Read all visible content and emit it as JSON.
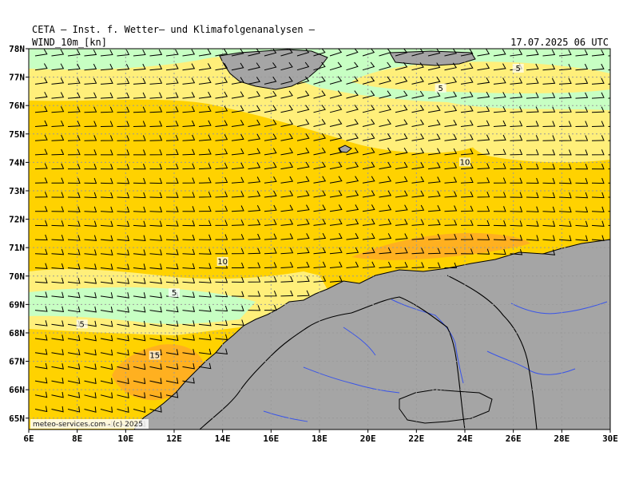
{
  "header": {
    "title": "CETA – Inst. f. Wetter– und Klimafolgenanalysen –",
    "field": "WIND_10m_[kn]",
    "valid_time": "17.07.2025 06 UTC"
  },
  "map": {
    "lon_range": [
      6,
      30
    ],
    "lat_range": [
      64.6,
      78
    ],
    "lat_ticks": [
      "65N",
      "66N",
      "67N",
      "68N",
      "69N",
      "70N",
      "71N",
      "72N",
      "73N",
      "74N",
      "75N",
      "76N",
      "77N",
      "78N"
    ],
    "lon_ticks": [
      "6E",
      "8E",
      "10E",
      "12E",
      "14E",
      "16E",
      "18E",
      "20E",
      "22E",
      "24E",
      "26E",
      "28E",
      "30E"
    ],
    "contour_labels": [
      {
        "text": "5",
        "lon": 26.2,
        "lat": 77.3
      },
      {
        "text": "5",
        "lon": 23.0,
        "lat": 76.6
      },
      {
        "text": "10",
        "lon": 24.0,
        "lat": 74.0
      },
      {
        "text": "10",
        "lon": 14.0,
        "lat": 70.5
      },
      {
        "text": "5",
        "lon": 12.0,
        "lat": 69.4
      },
      {
        "text": "5",
        "lon": 8.2,
        "lat": 68.3
      },
      {
        "text": "15",
        "lon": 11.2,
        "lat": 67.2
      }
    ],
    "credit": "meteo-services.com  -  (c) 2025",
    "colors": {
      "calm": "#c7ffc3",
      "light": "#ffef7a",
      "moderate": "#ffd200",
      "strong": "#ffb020",
      "land": "#a5a5a5",
      "grid": "#9a9a9a",
      "rivers": "#3a55e8"
    }
  }
}
